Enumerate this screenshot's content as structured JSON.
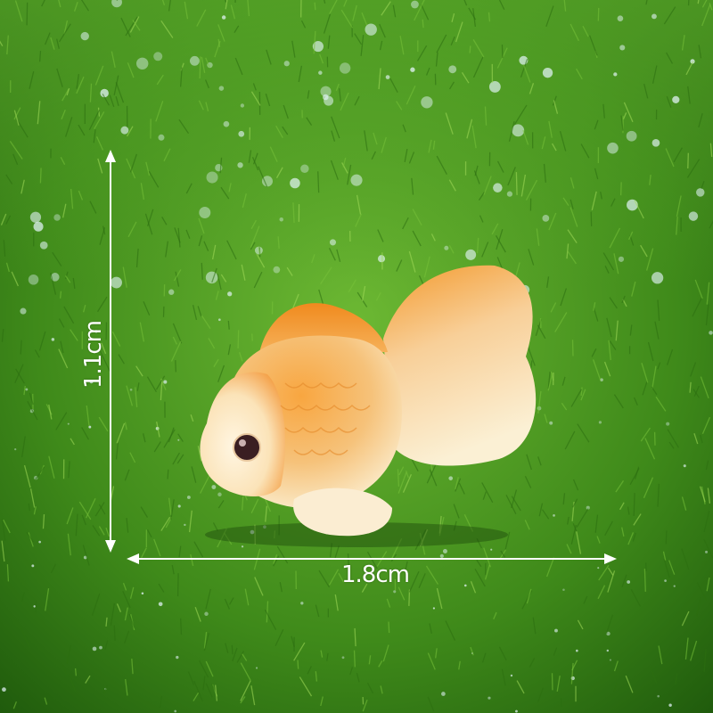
{
  "dimensions": {
    "height_label": "1.1cm",
    "width_label": "1.8cm"
  },
  "colors": {
    "grass": "#3f8a1a",
    "fish_orange": "#f39a2e",
    "fish_cream": "#fbeed0",
    "arrow": "#ffffff"
  }
}
